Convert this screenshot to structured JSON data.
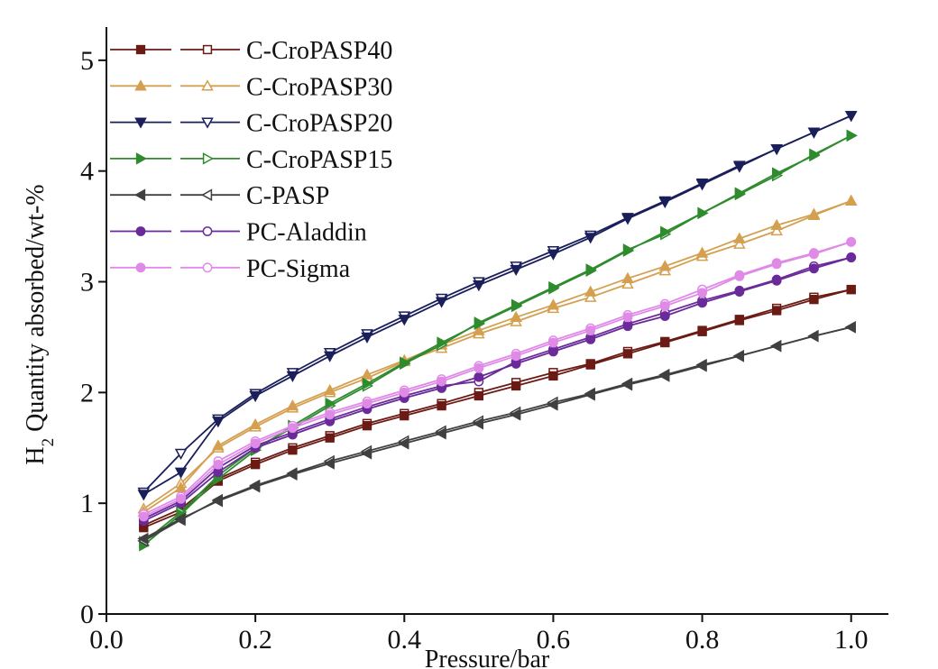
{
  "chart_data": {
    "type": "line",
    "y_label": [
      "H",
      "2",
      " Quantity absorbed/wt-%"
    ],
    "x_label": "Pressure/bar",
    "x": [
      0.05,
      0.1,
      0.15,
      0.2,
      0.25,
      0.3,
      0.35,
      0.4,
      0.45,
      0.5,
      0.55,
      0.6,
      0.65,
      0.7,
      0.75,
      0.8,
      0.85,
      0.9,
      0.95,
      1.0
    ],
    "xlim": [
      0,
      1.05
    ],
    "xticks": [
      {
        "value": 0,
        "label": "0.0"
      },
      {
        "value": 0.2,
        "label": "0.2"
      },
      {
        "value": 0.4,
        "label": "0.4"
      },
      {
        "value": 0.6,
        "label": "0.6"
      },
      {
        "value": 0.8,
        "label": "0.8"
      },
      {
        "value": 1,
        "label": "1.0"
      }
    ],
    "ylim": [
      0,
      5.3
    ],
    "yticks": [
      0,
      1,
      2,
      3,
      4,
      5
    ],
    "grid": false,
    "legend": "top-left",
    "series": [
      {
        "name": "C-CroPASP40",
        "color": "#6b1a14",
        "marker": "square",
        "values": [
          0.78,
          0.92,
          1.2,
          1.35,
          1.48,
          1.59,
          1.7,
          1.79,
          1.88,
          1.97,
          2.06,
          2.15,
          2.25,
          2.35,
          2.45,
          2.55,
          2.65,
          2.74,
          2.84,
          2.93
        ],
        "desorption": [
          0.8,
          0.95,
          1.22,
          1.37,
          1.5,
          1.61,
          1.72,
          1.81,
          1.9,
          2.0,
          2.09,
          2.18,
          2.26,
          2.37,
          2.46,
          2.56,
          2.66,
          2.76,
          2.86,
          2.93
        ]
      },
      {
        "name": "C-CroPASP30",
        "color": "#d4a050",
        "marker": "triangle-up",
        "values": [
          0.92,
          1.14,
          1.52,
          1.71,
          1.88,
          2.02,
          2.16,
          2.29,
          2.43,
          2.56,
          2.68,
          2.79,
          2.91,
          3.03,
          3.14,
          3.26,
          3.39,
          3.51,
          3.61,
          3.73
        ],
        "desorption": [
          0.95,
          1.18,
          1.5,
          1.69,
          1.86,
          2.0,
          2.13,
          2.28,
          2.4,
          2.53,
          2.64,
          2.76,
          2.86,
          2.98,
          3.1,
          3.23,
          3.34,
          3.46,
          3.6,
          3.73
        ]
      },
      {
        "name": "C-CroPASP20",
        "color": "#1a1f5a",
        "marker": "triangle-down",
        "values": [
          1.08,
          1.28,
          1.74,
          1.97,
          2.15,
          2.33,
          2.5,
          2.66,
          2.82,
          2.97,
          3.11,
          3.25,
          3.4,
          3.57,
          3.72,
          3.88,
          4.04,
          4.2,
          4.35,
          4.5
        ],
        "desorption": [
          1.1,
          1.45,
          1.76,
          1.99,
          2.18,
          2.36,
          2.53,
          2.69,
          2.85,
          3.0,
          3.14,
          3.28,
          3.42,
          3.58,
          3.73,
          3.89,
          4.05,
          4.2,
          4.35,
          4.5
        ]
      },
      {
        "name": "C-CroPASP15",
        "color": "#2e8b2e",
        "marker": "triangle-right",
        "values": [
          0.62,
          0.9,
          1.22,
          1.48,
          1.7,
          1.9,
          2.08,
          2.27,
          2.45,
          2.62,
          2.78,
          2.94,
          3.1,
          3.28,
          3.45,
          3.62,
          3.8,
          3.98,
          4.14,
          4.32
        ],
        "desorption": [
          0.65,
          0.92,
          1.25,
          1.5,
          1.68,
          1.88,
          2.06,
          2.26,
          2.43,
          2.63,
          2.79,
          2.95,
          3.11,
          3.29,
          3.43,
          3.62,
          3.79,
          3.96,
          4.15,
          4.32
        ]
      },
      {
        "name": "C-PASP",
        "color": "#404040",
        "marker": "triangle-left",
        "values": [
          0.68,
          0.86,
          1.02,
          1.15,
          1.26,
          1.36,
          1.45,
          1.54,
          1.63,
          1.72,
          1.8,
          1.89,
          1.98,
          2.07,
          2.15,
          2.24,
          2.33,
          2.42,
          2.51,
          2.59
        ],
        "desorption": [
          0.66,
          0.85,
          1.03,
          1.16,
          1.27,
          1.38,
          1.47,
          1.56,
          1.65,
          1.74,
          1.82,
          1.91,
          1.99,
          2.08,
          2.16,
          2.25,
          2.33,
          2.42,
          2.51,
          2.59
        ]
      },
      {
        "name": "PC-Aladdin",
        "color": "#6a2a9a",
        "marker": "circle",
        "values": [
          0.84,
          1.0,
          1.28,
          1.5,
          1.62,
          1.74,
          1.85,
          1.95,
          2.04,
          2.14,
          2.26,
          2.37,
          2.48,
          2.6,
          2.69,
          2.81,
          2.91,
          3.01,
          3.12,
          3.22
        ],
        "desorption": [
          0.86,
          1.02,
          1.32,
          1.52,
          1.64,
          1.76,
          1.87,
          1.97,
          2.06,
          2.1,
          2.28,
          2.39,
          2.5,
          2.62,
          2.72,
          2.83,
          2.92,
          3.02,
          3.14,
          3.22
        ]
      },
      {
        "name": "PC-Sigma",
        "color": "#e08ae8",
        "marker": "circle",
        "values": [
          0.88,
          1.04,
          1.35,
          1.54,
          1.68,
          1.8,
          1.9,
          2.0,
          2.1,
          2.22,
          2.33,
          2.45,
          2.56,
          2.68,
          2.78,
          2.9,
          3.05,
          3.16,
          3.25,
          3.36
        ],
        "desorption": [
          0.9,
          1.06,
          1.38,
          1.56,
          1.7,
          1.82,
          1.92,
          2.02,
          2.12,
          2.24,
          2.35,
          2.47,
          2.58,
          2.7,
          2.8,
          2.93,
          3.06,
          3.17,
          3.26,
          3.36
        ]
      }
    ]
  }
}
